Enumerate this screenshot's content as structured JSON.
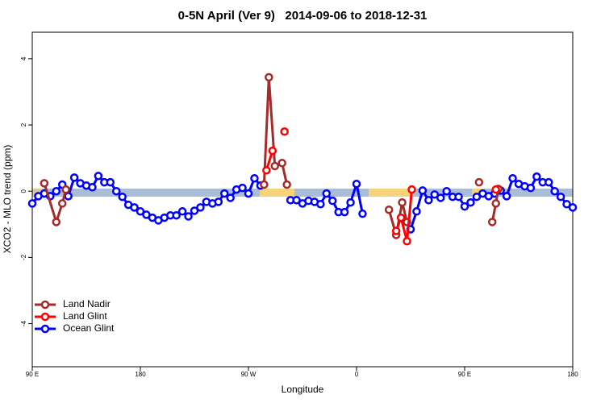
{
  "chart_data": {
    "type": "line",
    "title": "0-5N April (Ver 9)   2014-09-06 to 2018-12-31",
    "x_label": "Longitude",
    "y_label": "XCO2 - MLO trend (ppm)",
    "xlim": [
      90,
      540
    ],
    "xticks": [
      {
        "value": 90,
        "label": "90 E"
      },
      180,
      {
        "value": 270,
        "label": "90 W"
      },
      {
        "value": 360,
        "label": "0"
      },
      {
        "value": 450,
        "label": "90 E"
      },
      {
        "value": 540,
        "label": "180"
      }
    ],
    "ylim": [
      -5.3,
      4.8
    ],
    "yticks": [
      -4,
      -2,
      0,
      2,
      4
    ],
    "legend": "bottom-left",
    "series": [
      {
        "name": "Land Nadir",
        "color": "#a52a2a",
        "x": [
          100,
          110,
          115,
          118,
          null,
          283,
          287,
          292,
          298,
          302,
          null,
          387,
          393,
          398,
          402,
          null,
          462,
          null,
          473,
          476,
          478
        ],
        "values": [
          0.24,
          -0.93,
          -0.37,
          0.05,
          null,
          0.2,
          3.44,
          0.76,
          0.85,
          0.2,
          null,
          -0.56,
          -1.32,
          -0.34,
          -0.93,
          null,
          0.27,
          null,
          -0.93,
          -0.37,
          0.07
        ]
      },
      {
        "name": "Land Glint",
        "color": "#ff0000",
        "x": [
          285,
          290,
          null,
          300,
          null,
          393,
          397,
          402,
          406,
          null,
          476
        ],
        "values": [
          0.63,
          1.22,
          null,
          1.8,
          null,
          -1.2,
          -0.8,
          -1.51,
          0.05,
          null,
          0.05
        ]
      },
      {
        "name": "Ocean Glint",
        "color": "#0000ff",
        "x": [
          90,
          95,
          100,
          105,
          110,
          115,
          120,
          125,
          130,
          135,
          140,
          145,
          150,
          155,
          160,
          165,
          170,
          175,
          180,
          185,
          190,
          195,
          200,
          205,
          210,
          215,
          220,
          225,
          230,
          235,
          240,
          245,
          250,
          255,
          260,
          265,
          270,
          275,
          280,
          null,
          305,
          310,
          315,
          320,
          325,
          330,
          335,
          340,
          345,
          350,
          355,
          360,
          365,
          null,
          405,
          410,
          415,
          420,
          425,
          430,
          435,
          440,
          445,
          450,
          455,
          460,
          465,
          470,
          475,
          480,
          485,
          490,
          495,
          500,
          505,
          510,
          515,
          520,
          525,
          530,
          535,
          540
        ],
        "values": [
          -0.37,
          -0.15,
          -0.07,
          -0.15,
          0,
          0.2,
          -0.15,
          0.41,
          0.24,
          0.17,
          0.12,
          0.46,
          0.27,
          0.27,
          0,
          -0.17,
          -0.41,
          -0.49,
          -0.61,
          -0.71,
          -0.8,
          -0.88,
          -0.8,
          -0.73,
          -0.73,
          -0.61,
          -0.76,
          -0.59,
          -0.49,
          -0.32,
          -0.37,
          -0.32,
          -0.07,
          -0.2,
          0.05,
          0.1,
          -0.07,
          0.39,
          0.17,
          null,
          -0.27,
          -0.27,
          -0.37,
          -0.29,
          -0.32,
          -0.39,
          -0.07,
          -0.29,
          -0.63,
          -0.63,
          -0.34,
          0.22,
          -0.68,
          null,
          -1.15,
          -0.61,
          0.02,
          -0.27,
          -0.1,
          -0.2,
          0,
          -0.17,
          -0.17,
          -0.46,
          -0.34,
          -0.17,
          -0.07,
          -0.15,
          -0.07,
          0.02,
          -0.15,
          0.39,
          0.22,
          0.15,
          0.1,
          0.44,
          0.27,
          0.27,
          0,
          -0.17,
          -0.39,
          -0.49
        ]
      }
    ]
  }
}
